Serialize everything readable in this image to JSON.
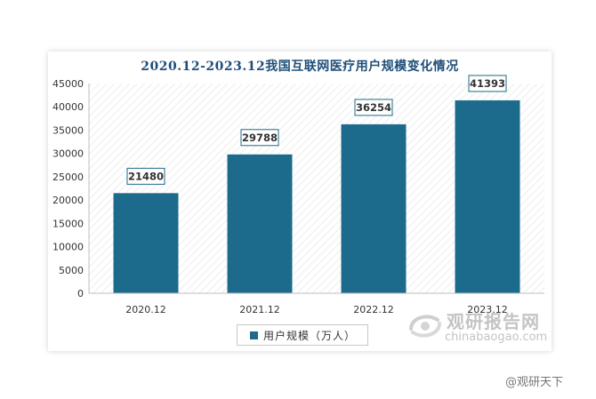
{
  "chart_data": {
    "type": "bar",
    "title": "2020.12-2023.12我国互联网医疗用户规模变化情况",
    "categories": [
      "2020.12",
      "2021.12",
      "2022.12",
      "2023.12"
    ],
    "series": [
      {
        "name": "用户规模（万人）",
        "values": [
          21480,
          29788,
          36254,
          41393
        ]
      }
    ],
    "ylim": [
      0,
      45000
    ],
    "yticks": [
      0,
      5000,
      10000,
      15000,
      20000,
      25000,
      30000,
      35000,
      40000,
      45000
    ],
    "xlabel": "",
    "ylabel": "",
    "data_labels": [
      "21480",
      "29788",
      "36254",
      "41393"
    ],
    "legend_position": "bottom",
    "grid": false,
    "bar_color": "#1c6a8c",
    "plot_background": "hatched"
  },
  "watermark": {
    "name_cn": "观研报告网",
    "url": "chinabaogao.com",
    "source": "@观研天下"
  }
}
